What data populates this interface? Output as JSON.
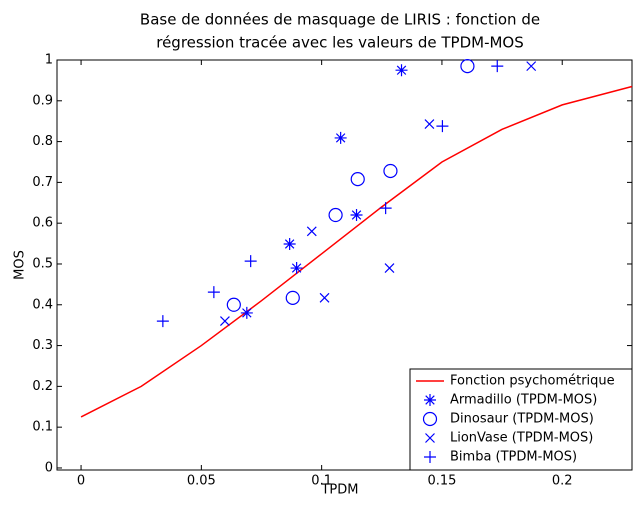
{
  "chart_data": {
    "type": "scatter",
    "title": [
      "Base de données de masquage de LIRIS : fonction de",
      "régression tracée avec les valeurs de TPDM-MOS"
    ],
    "xlabel": "TPDM",
    "ylabel": "MOS",
    "xlim": [
      -0.01,
      0.229
    ],
    "ylim": [
      -0.005,
      1
    ],
    "xticks": [
      0,
      0.05,
      0.1,
      0.15,
      0.2
    ],
    "yticks": [
      0,
      0.1,
      0.2,
      0.3,
      0.4,
      0.5,
      0.6,
      0.7,
      0.8,
      0.9,
      1
    ],
    "grid": false,
    "legend": "lower right",
    "series": [
      {
        "name": "Fonction psychométrique",
        "kind": "line",
        "color": "#ff0000",
        "x": [
          0,
          0.025,
          0.05,
          0.075,
          0.1,
          0.125,
          0.15,
          0.175,
          0.2,
          0.229
        ],
        "values": [
          0.125,
          0.2,
          0.3,
          0.41,
          0.525,
          0.64,
          0.75,
          0.83,
          0.89,
          0.935
        ]
      },
      {
        "name": "Armadillo (TPDM-MOS)",
        "kind": "scatter",
        "marker": "*",
        "color": "#0000ff",
        "x": [
          0.0867,
          0.0896,
          0.0689,
          0.1079,
          0.1145,
          0.1332
        ],
        "values": [
          0.549,
          0.49,
          0.38,
          0.809,
          0.62,
          0.975
        ]
      },
      {
        "name": "Dinosaur (TPDM-MOS)",
        "kind": "scatter",
        "marker": "o",
        "color": "#0000ff",
        "x": [
          0.0635,
          0.088,
          0.1058,
          0.115,
          0.1286,
          0.1606
        ],
        "values": [
          0.4,
          0.417,
          0.62,
          0.708,
          0.728,
          0.985
        ]
      },
      {
        "name": "LionVase (TPDM-MOS)",
        "kind": "scatter",
        "marker": "x",
        "color": "#0000ff",
        "x": [
          0.0598,
          0.0959,
          0.1012,
          0.1282,
          0.1448,
          0.1871
        ],
        "values": [
          0.36,
          0.58,
          0.417,
          0.49,
          0.843,
          0.985
        ]
      },
      {
        "name": "Bimba (TPDM-MOS)",
        "kind": "scatter",
        "marker": "+",
        "color": "#0000ff",
        "x": [
          0.034,
          0.0552,
          0.0705,
          0.1266,
          0.1502,
          0.173
        ],
        "values": [
          0.36,
          0.431,
          0.507,
          0.637,
          0.838,
          0.985
        ]
      }
    ]
  }
}
